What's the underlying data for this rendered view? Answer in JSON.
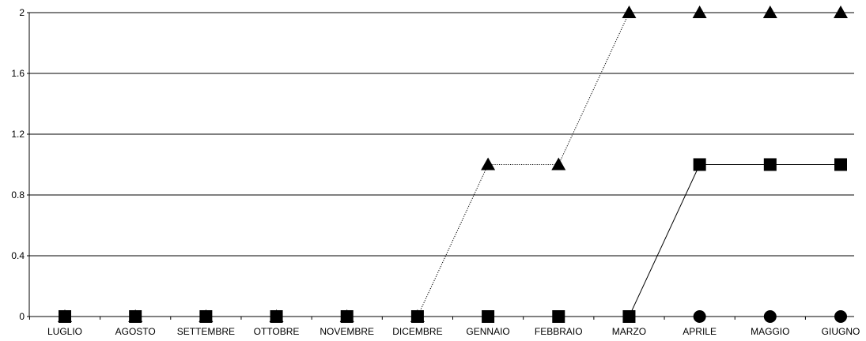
{
  "chart_data": {
    "type": "line",
    "categories": [
      "LUGLIO",
      "AGOSTO",
      "SETTEMBRE",
      "OTTOBRE",
      "NOVEMBRE",
      "DICEMBRE",
      "GENNAIO",
      "FEBBRAIO",
      "MARZO",
      "APRILE",
      "MAGGIO",
      "GIUGNO"
    ],
    "ylim": [
      0,
      2
    ],
    "yticks": [
      0,
      0.4,
      0.8,
      1.2,
      1.6,
      2
    ],
    "ytick_labels": [
      "0",
      "0.4",
      "0.8",
      "1.2",
      "1.6",
      "2"
    ],
    "grid": true,
    "title": "",
    "xlabel": "",
    "ylabel": "",
    "series": [
      {
        "marker": "triangle",
        "line_style": "dotted",
        "color": "#000000",
        "values": [
          0,
          0,
          0,
          0,
          0,
          0,
          1,
          1,
          2,
          2,
          2,
          2
        ]
      },
      {
        "marker": "square",
        "line_style": "solid",
        "color": "#000000",
        "values": [
          0,
          0,
          0,
          0,
          0,
          0,
          0,
          0,
          0,
          1,
          1,
          1
        ]
      },
      {
        "marker": "circle",
        "line_style": "solid",
        "color": "#000000",
        "values": [
          null,
          null,
          null,
          null,
          null,
          null,
          null,
          null,
          null,
          0,
          0,
          0
        ]
      }
    ]
  }
}
